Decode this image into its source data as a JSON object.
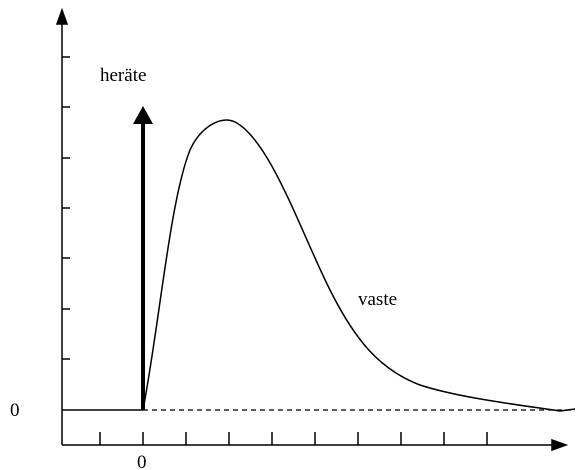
{
  "labels": {
    "stimulus": "heräte",
    "response": "vaste",
    "y_zero": "0",
    "x_zero": "0"
  }
}
